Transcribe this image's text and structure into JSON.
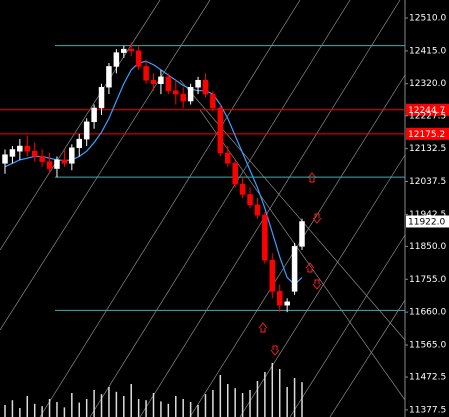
{
  "chart_data": {
    "type": "candlestick",
    "open": [
      12090,
      12110,
      12125,
      12140,
      12125,
      12110,
      12095,
      12075,
      12100,
      12090,
      12135,
      12160,
      12210,
      12250,
      12310,
      12370,
      12410,
      12420,
      12415,
      12370,
      12330,
      12320,
      12340,
      12300,
      12290,
      12270,
      12310,
      12330,
      12290,
      12250,
      12120,
      12090,
      12030,
      12000,
      11970,
      11940,
      11810,
      11720,
      11680,
      11720,
      11850
    ],
    "high": [
      12130,
      12140,
      12160,
      12170,
      12150,
      12130,
      12120,
      12110,
      12130,
      12145,
      12175,
      12220,
      12260,
      12320,
      12380,
      12420,
      12430,
      12440,
      12430,
      12390,
      12350,
      12360,
      12350,
      12330,
      12310,
      12320,
      12340,
      12350,
      12300,
      12260,
      12140,
      12100,
      12050,
      12020,
      11990,
      11950,
      11830,
      11740,
      11700,
      11860,
      11930
    ],
    "low": [
      12060,
      12090,
      12100,
      12110,
      12095,
      12080,
      12060,
      12050,
      12080,
      12070,
      12110,
      12140,
      12190,
      12230,
      12290,
      12350,
      12395,
      12400,
      12360,
      12320,
      12300,
      12290,
      12290,
      12260,
      12250,
      12260,
      12290,
      12280,
      12240,
      12110,
      12080,
      12020,
      11990,
      11960,
      11930,
      11800,
      11700,
      11660,
      11660,
      11710,
      11840
    ],
    "close": [
      12115,
      12130,
      12140,
      12125,
      12110,
      12095,
      12075,
      12100,
      12090,
      12135,
      12160,
      12210,
      12250,
      12310,
      12370,
      12410,
      12420,
      12415,
      12370,
      12330,
      12320,
      12340,
      12300,
      12290,
      12270,
      12310,
      12330,
      12290,
      12250,
      12120,
      12090,
      12030,
      12000,
      11970,
      11940,
      11810,
      11720,
      11680,
      11690,
      11850,
      11922
    ],
    "ma": [
      12080,
      12090,
      12100,
      12105,
      12110,
      12110,
      12105,
      12100,
      12098,
      12100,
      12110,
      12125,
      12150,
      12180,
      12220,
      12270,
      12320,
      12360,
      12380,
      12385,
      12375,
      12360,
      12345,
      12330,
      12315,
      12305,
      12300,
      12300,
      12290,
      12260,
      12220,
      12170,
      12120,
      12070,
      12020,
      11960,
      11890,
      11820,
      11760,
      11740,
      11760
    ],
    "volume": [
      20,
      28,
      15,
      35,
      22,
      18,
      30,
      25,
      16,
      40,
      24,
      30,
      45,
      38,
      50,
      42,
      35,
      55,
      30,
      28,
      40,
      26,
      22,
      35,
      30,
      25,
      20,
      38,
      45,
      70,
      55,
      48,
      40,
      45,
      60,
      75,
      90,
      80,
      50,
      65,
      58
    ],
    "volume_lim": [
      0,
      100
    ],
    "up_color": "#ffffff",
    "down_color": "#ff0000",
    "ma_color": "#3aa0ff",
    "ylim": [
      11357,
      12562
    ],
    "yticks": [
      {
        "value": 12510.0,
        "label": "12510.0"
      },
      {
        "value": 12415.0,
        "label": "12415.0"
      },
      {
        "value": 12320.0,
        "label": "12320.0"
      },
      {
        "value": 12227.5,
        "label": "12227.5"
      },
      {
        "value": 12132.5,
        "label": "12132.5"
      },
      {
        "value": 12037.5,
        "label": "12037.5"
      },
      {
        "value": 11942.5,
        "label": "11942.5"
      },
      {
        "value": 11850.0,
        "label": "11850.0"
      },
      {
        "value": 11755.0,
        "label": "11755.0"
      },
      {
        "value": 11660.0,
        "label": "11660.0"
      },
      {
        "value": 11565.0,
        "label": "11565.0"
      },
      {
        "value": 11472.5,
        "label": "11472.5"
      },
      {
        "value": 11377.5,
        "label": "11377.5"
      }
    ],
    "levels": [
      12430,
      12050,
      11665
    ],
    "level_color": "#3cb0b0",
    "price_tags": [
      {
        "value": 12244.7,
        "label": "12244.7",
        "color": "#ff0000"
      },
      {
        "value": 12175.2,
        "label": "12175.2",
        "color": "#ff0000"
      },
      {
        "value": 11922.0,
        "label": "11922.0",
        "color": "#ffffff"
      }
    ]
  }
}
